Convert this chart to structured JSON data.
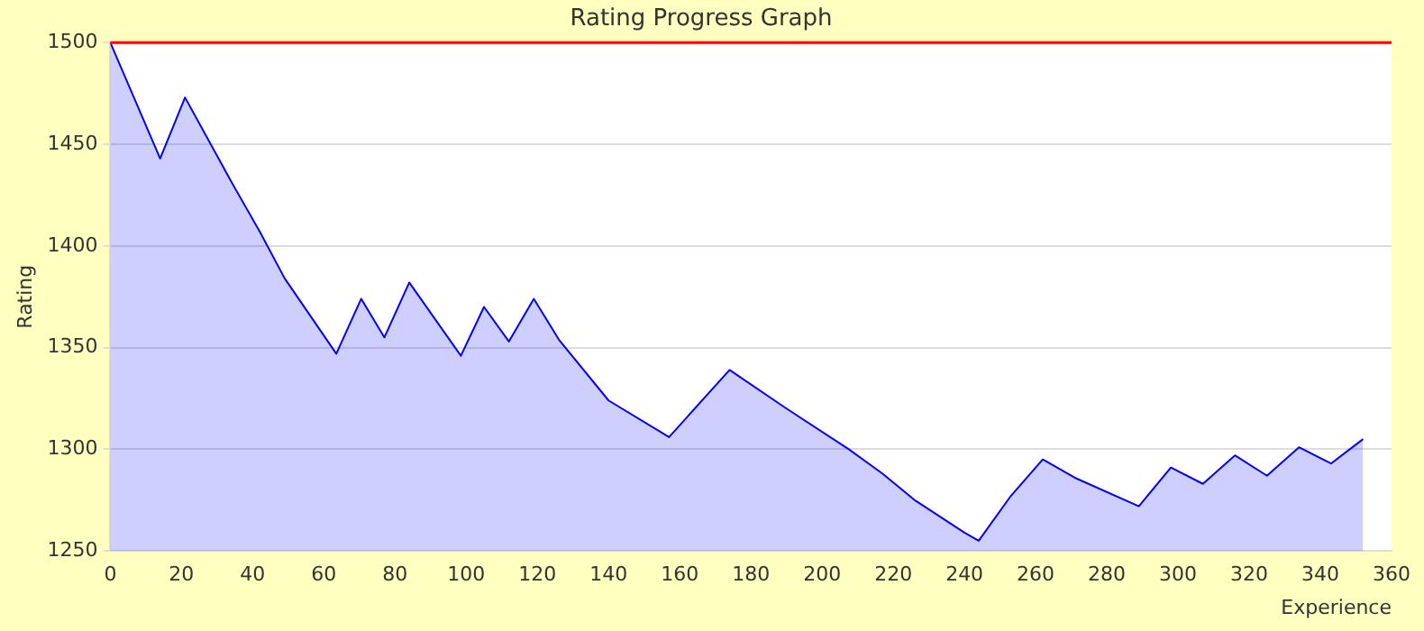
{
  "chart_data": {
    "type": "area",
    "title": "Rating Progress Graph",
    "xlabel": "Experience",
    "ylabel": "Rating",
    "x": [
      0,
      14,
      21,
      34.5,
      42,
      49,
      63.5,
      70.5,
      77,
      84,
      98.5,
      105,
      112,
      119,
      126,
      140,
      157,
      174,
      190,
      207.5,
      217,
      226,
      240,
      244,
      253,
      262,
      271,
      289,
      298,
      307,
      316,
      325,
      334,
      343,
      352
    ],
    "series": [
      {
        "color": "#0000ff",
        "values": [
          1500,
          1443,
          1473,
          1430,
          1407,
          1384,
          1347,
          1374,
          1355,
          1382,
          1346,
          1370,
          1353,
          1374,
          1354,
          1324,
          1306,
          1339,
          1320,
          1300,
          1288,
          1275,
          1259,
          1255,
          1277,
          1295,
          1286,
          1272,
          1291,
          1283,
          1297,
          1287,
          1301,
          1293,
          1305
        ]
      }
    ],
    "xlim": [
      0,
      360
    ],
    "xticks": [
      0,
      20,
      40,
      60,
      80,
      100,
      120,
      140,
      160,
      180,
      200,
      220,
      240,
      260,
      280,
      300,
      320,
      340,
      360
    ],
    "ylim": [
      1250,
      1500
    ],
    "yticks": [
      1250,
      1300,
      1350,
      1400,
      1450,
      1500
    ],
    "grid": "y",
    "legend": false,
    "marker": "none",
    "line_style": "solid",
    "ref_lines": [
      {
        "axis": "y",
        "value": 1500,
        "color": "#ff0000"
      }
    ]
  }
}
